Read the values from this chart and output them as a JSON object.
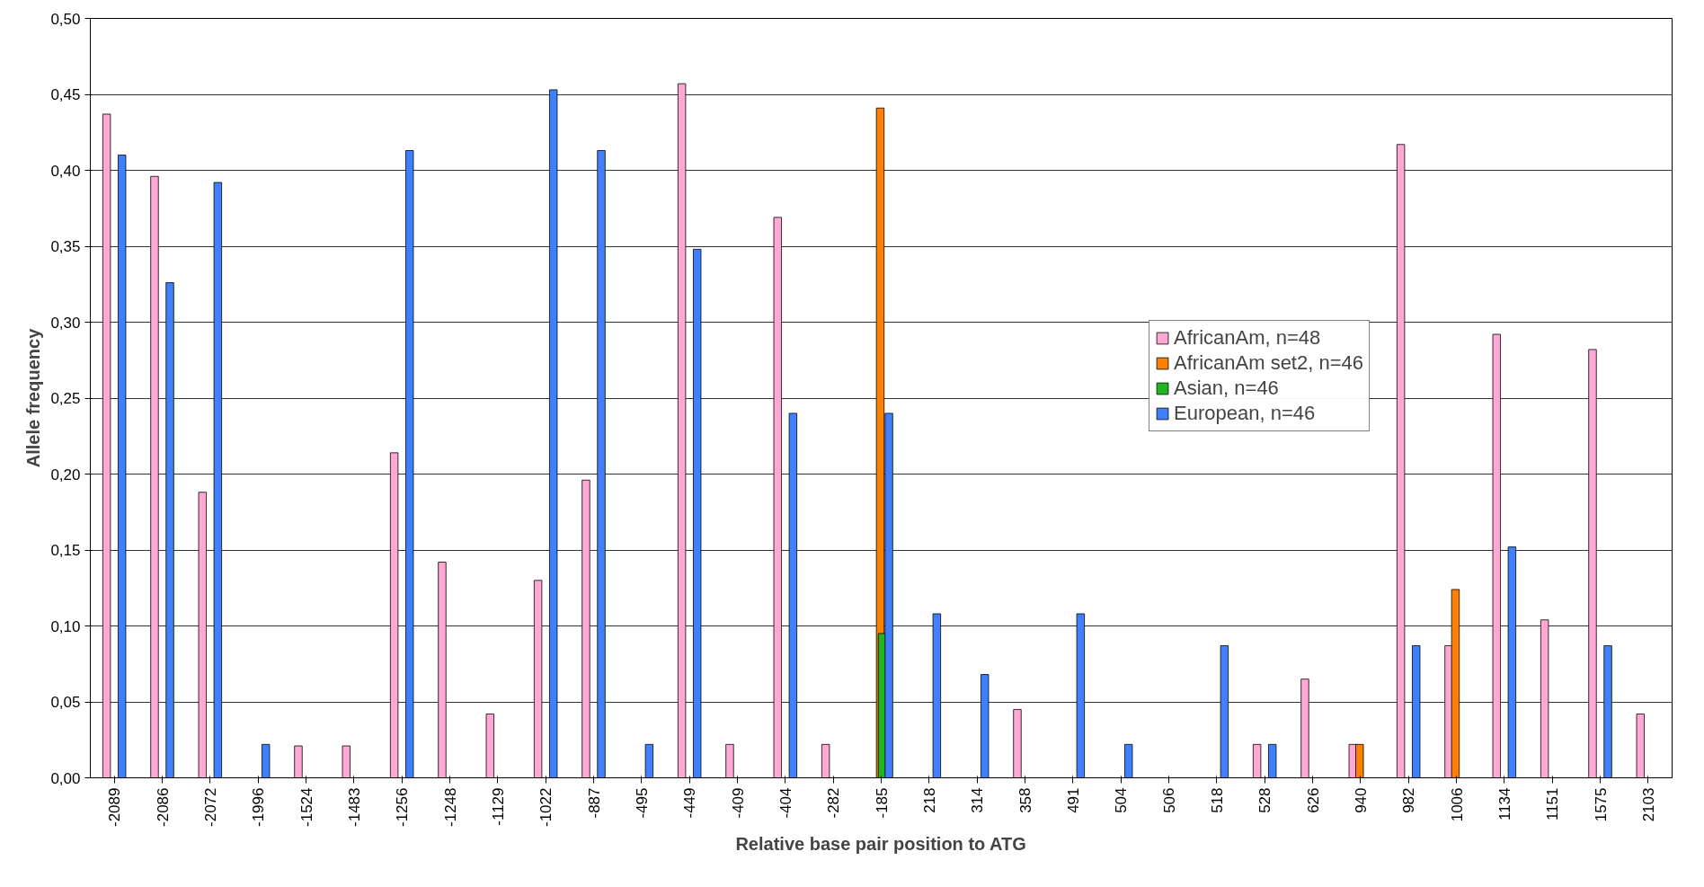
{
  "chart_data": {
    "type": "bar",
    "xlabel": "Relative base pair position to ATG",
    "ylabel": "Allele frequency",
    "categories": [
      "-2089",
      "-2086",
      "-2072",
      "-1996",
      "-1524",
      "-1483",
      "-1256",
      "-1248",
      "-1129",
      "-1022",
      "-887",
      "-495",
      "-449",
      "-409",
      "-404",
      "-282",
      "-185",
      "218",
      "314",
      "358",
      "491",
      "504",
      "506",
      "518",
      "528",
      "626",
      "940",
      "982",
      "1006",
      "1134",
      "1151",
      "1575",
      "2103"
    ],
    "series": [
      {
        "name": "AfricanAm, n=48",
        "color": "#ffa8d4",
        "values": [
          0.437,
          0.396,
          0.188,
          null,
          0.021,
          0.021,
          0.214,
          0.142,
          0.042,
          0.13,
          0.196,
          null,
          0.457,
          0.022,
          0.369,
          0.022,
          null,
          null,
          null,
          0.045,
          null,
          null,
          null,
          null,
          0.022,
          0.065,
          0.022,
          0.417,
          0.087,
          0.292,
          0.104,
          0.282,
          0.042
        ]
      },
      {
        "name": "AfricanAm set2, n=46",
        "color": "#ff7f00",
        "values": [
          null,
          null,
          null,
          null,
          null,
          null,
          null,
          null,
          null,
          null,
          null,
          null,
          null,
          null,
          null,
          null,
          0.441,
          null,
          null,
          null,
          null,
          null,
          null,
          null,
          null,
          null,
          0.022,
          null,
          0.124,
          null,
          null,
          null,
          null
        ]
      },
      {
        "name": "Asian, n=46",
        "color": "#22b522",
        "values": [
          null,
          null,
          null,
          null,
          null,
          null,
          null,
          null,
          null,
          null,
          null,
          null,
          null,
          null,
          null,
          null,
          0.095,
          null,
          null,
          null,
          null,
          null,
          null,
          null,
          null,
          null,
          null,
          null,
          null,
          null,
          null,
          null,
          null
        ]
      },
      {
        "name": "European, n=46",
        "color": "#4080ff",
        "values": [
          0.41,
          0.326,
          0.392,
          0.022,
          null,
          null,
          0.413,
          null,
          null,
          0.453,
          0.413,
          0.022,
          0.348,
          null,
          0.24,
          null,
          0.24,
          0.108,
          0.068,
          null,
          0.108,
          0.022,
          null,
          0.087,
          0.022,
          null,
          null,
          0.087,
          null,
          0.152,
          null,
          0.087,
          null
        ]
      }
    ],
    "ylim": [
      0,
      0.5
    ],
    "yticks": [
      {
        "value": 0,
        "label": "0,00"
      },
      {
        "value": 0.05,
        "label": "0,05"
      },
      {
        "value": 0.1,
        "label": "0,10"
      },
      {
        "value": 0.15,
        "label": "0,15"
      },
      {
        "value": 0.2,
        "label": "0,20"
      },
      {
        "value": 0.25,
        "label": "0,25"
      },
      {
        "value": 0.3,
        "label": "0,30"
      },
      {
        "value": 0.35,
        "label": "0,35"
      },
      {
        "value": 0.4,
        "label": "0,40"
      },
      {
        "value": 0.45,
        "label": "0,45"
      },
      {
        "value": 0.5,
        "label": "0,50"
      }
    ],
    "grid": "y",
    "legend": "top right"
  }
}
